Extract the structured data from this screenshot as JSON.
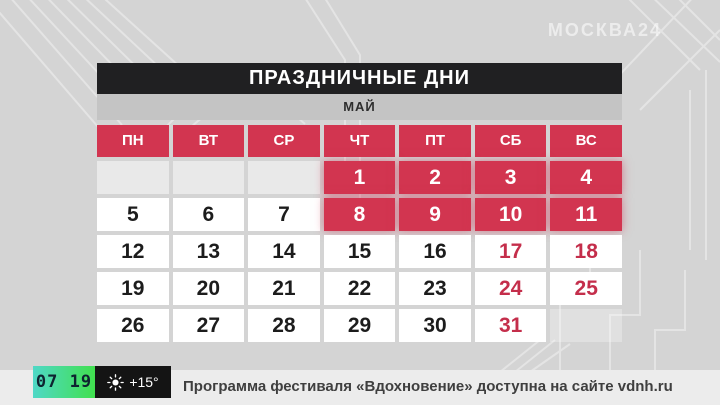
{
  "logo": {
    "text": "МОСКВА24"
  },
  "calendar": {
    "title": "ПРАЗДНИЧНЫЕ ДНИ",
    "month": "МАЙ",
    "weekdays": [
      "ПН",
      "ВТ",
      "СР",
      "ЧТ",
      "ПТ",
      "СБ",
      "ВС"
    ],
    "cells": [
      {
        "day": "",
        "style": "empty"
      },
      {
        "day": "",
        "style": "empty"
      },
      {
        "day": "",
        "style": "empty"
      },
      {
        "day": "1",
        "style": "holiday"
      },
      {
        "day": "2",
        "style": "holiday"
      },
      {
        "day": "3",
        "style": "holiday"
      },
      {
        "day": "4",
        "style": "holiday"
      },
      {
        "day": "5",
        "style": "workday"
      },
      {
        "day": "6",
        "style": "workday"
      },
      {
        "day": "7",
        "style": "workday"
      },
      {
        "day": "8",
        "style": "holiday"
      },
      {
        "day": "9",
        "style": "holiday"
      },
      {
        "day": "10",
        "style": "holiday"
      },
      {
        "day": "11",
        "style": "holiday"
      },
      {
        "day": "12",
        "style": "workday"
      },
      {
        "day": "13",
        "style": "workday"
      },
      {
        "day": "14",
        "style": "workday"
      },
      {
        "day": "15",
        "style": "workday"
      },
      {
        "day": "16",
        "style": "workday"
      },
      {
        "day": "17",
        "style": "weekend"
      },
      {
        "day": "18",
        "style": "weekend"
      },
      {
        "day": "19",
        "style": "workday"
      },
      {
        "day": "20",
        "style": "workday"
      },
      {
        "day": "21",
        "style": "workday"
      },
      {
        "day": "22",
        "style": "workday"
      },
      {
        "day": "23",
        "style": "workday"
      },
      {
        "day": "24",
        "style": "weekend"
      },
      {
        "day": "25",
        "style": "weekend"
      },
      {
        "day": "26",
        "style": "workday"
      },
      {
        "day": "27",
        "style": "workday"
      },
      {
        "day": "28",
        "style": "workday"
      },
      {
        "day": "29",
        "style": "workday"
      },
      {
        "day": "30",
        "style": "workday"
      },
      {
        "day": "31",
        "style": "weekend"
      },
      {
        "day": "",
        "style": "ghost"
      }
    ]
  },
  "status_bar": {
    "time": "07 19",
    "temperature": "+15°",
    "ticker": "Программа фестиваля «Вдохновение» доступна на сайте vdnh.ru"
  },
  "colors": {
    "accent_red": "#d23550",
    "weekend_text_red": "#c42e4b",
    "title_bar_black": "#202022",
    "month_band_gray": "#c4c4c4",
    "page_background": "#d4d4d4",
    "ticker_background": "#ececec",
    "clock_gradient_start": "#4fd8c7",
    "clock_gradient_end": "#41e04e",
    "weather_box_black": "#141414"
  }
}
